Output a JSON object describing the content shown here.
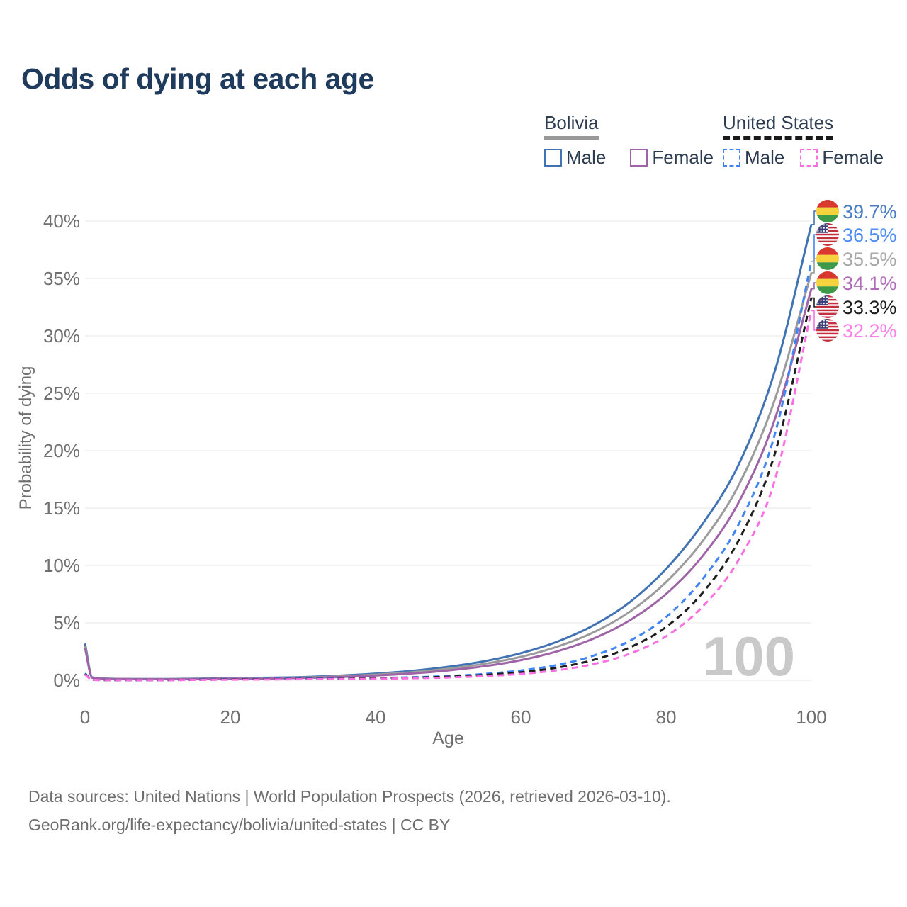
{
  "title": "Odds of dying at each age",
  "legend": {
    "groups": [
      {
        "name": "Bolivia",
        "underline": {
          "style": "solid",
          "color": "#999999"
        },
        "items": [
          {
            "label": "Male",
            "series": "bolivia-male"
          },
          {
            "label": "Female",
            "series": "bolivia-female"
          }
        ]
      },
      {
        "name": "United States",
        "underline": {
          "style": "dashed",
          "color": "#1a1a1a"
        },
        "items": [
          {
            "label": "Male",
            "series": "us-male"
          },
          {
            "label": "Female",
            "series": "us-female"
          }
        ]
      }
    ]
  },
  "chart_data": {
    "type": "line",
    "title": "Odds of dying at each age",
    "xlabel": "Age",
    "ylabel": "Probability of dying",
    "watermark_age": "100",
    "xlim": [
      0,
      100
    ],
    "ylim": [
      0,
      40
    ],
    "grid": "horizontal",
    "xtick_values": [
      0,
      20,
      40,
      60,
      80,
      100
    ],
    "xtick_labels": [
      "0",
      "20",
      "40",
      "60",
      "80",
      "100"
    ],
    "ytick_values": [
      0,
      5,
      10,
      15,
      20,
      25,
      30,
      35,
      40
    ],
    "ytick_labels": [
      "0%",
      "5%",
      "10%",
      "15%",
      "20%",
      "25%",
      "30%",
      "35%",
      "40%"
    ],
    "ages": [
      0,
      1,
      5,
      10,
      15,
      20,
      25,
      30,
      35,
      40,
      45,
      50,
      55,
      60,
      65,
      70,
      75,
      80,
      85,
      90,
      95,
      100
    ],
    "series": [
      {
        "key": "bolivia-male",
        "name": "Bolivia Male",
        "flag": "bolivia",
        "dash": false,
        "color": "#4173b4",
        "label_color": "#4a7cc4",
        "end_label": "39.7%",
        "end_value": 39.7,
        "values": [
          3.2,
          0.25,
          0.12,
          0.11,
          0.14,
          0.18,
          0.22,
          0.28,
          0.4,
          0.58,
          0.82,
          1.17,
          1.66,
          2.36,
          3.36,
          4.78,
          6.8,
          9.7,
          13.6,
          18.8,
          27.0,
          39.7
        ]
      },
      {
        "key": "bolivia-total",
        "name": "Bolivia",
        "flag": "bolivia",
        "dash": false,
        "color": "#9b9b9b",
        "label_color": "#a7a7a7",
        "end_label": "35.5%",
        "end_value": 35.5,
        "values": [
          3.0,
          0.23,
          0.11,
          0.1,
          0.12,
          0.15,
          0.18,
          0.24,
          0.34,
          0.49,
          0.7,
          1.0,
          1.43,
          2.04,
          2.92,
          4.17,
          5.97,
          8.55,
          12.1,
          17.0,
          24.5,
          35.5
        ]
      },
      {
        "key": "bolivia-female",
        "name": "Bolivia Female",
        "flag": "bolivia",
        "dash": false,
        "color": "#9f63a8",
        "label_color": "#b06ab8",
        "end_label": "34.1%",
        "end_value": 34.1,
        "values": [
          2.8,
          0.21,
          0.1,
          0.09,
          0.1,
          0.13,
          0.15,
          0.2,
          0.28,
          0.41,
          0.59,
          0.85,
          1.22,
          1.75,
          2.52,
          3.63,
          5.22,
          7.52,
          10.8,
          15.5,
          22.8,
          34.1
        ]
      },
      {
        "key": "us-male",
        "name": "United States Male",
        "flag": "us",
        "dash": true,
        "color": "#4085f5",
        "label_color": "#4c8cf8",
        "end_label": "36.5%",
        "end_value": 36.5,
        "values": [
          0.6,
          0.04,
          0.015,
          0.012,
          0.05,
          0.1,
          0.13,
          0.15,
          0.17,
          0.2,
          0.26,
          0.37,
          0.55,
          0.85,
          1.33,
          2.14,
          3.43,
          5.5,
          8.8,
          13.6,
          21.5,
          36.5
        ]
      },
      {
        "key": "us-total",
        "name": "United States",
        "flag": "us",
        "dash": true,
        "color": "#1d1d1d",
        "label_color": "#1d1d1d",
        "end_label": "33.3%",
        "end_value": 33.3,
        "values": [
          0.55,
          0.037,
          0.013,
          0.011,
          0.04,
          0.08,
          0.1,
          0.12,
          0.14,
          0.17,
          0.22,
          0.31,
          0.46,
          0.7,
          1.1,
          1.77,
          2.86,
          4.64,
          7.6,
          12.2,
          19.8,
          33.3
        ]
      },
      {
        "key": "us-female",
        "name": "United States Female",
        "flag": "us",
        "dash": true,
        "color": "#fa6fe1",
        "label_color": "#fb80e6",
        "end_label": "32.2%",
        "end_value": 32.2,
        "values": [
          0.5,
          0.034,
          0.012,
          0.01,
          0.03,
          0.05,
          0.07,
          0.09,
          0.11,
          0.13,
          0.17,
          0.24,
          0.36,
          0.55,
          0.87,
          1.41,
          2.31,
          3.83,
          6.4,
          10.5,
          17.5,
          32.2
        ]
      }
    ]
  },
  "footer": {
    "line1": "Data sources: United Nations | World Population Prospects (2026, retrieved 2026-03-10).",
    "line2": "GeoRank.org/life-expectancy/bolivia/united-states | CC BY"
  }
}
